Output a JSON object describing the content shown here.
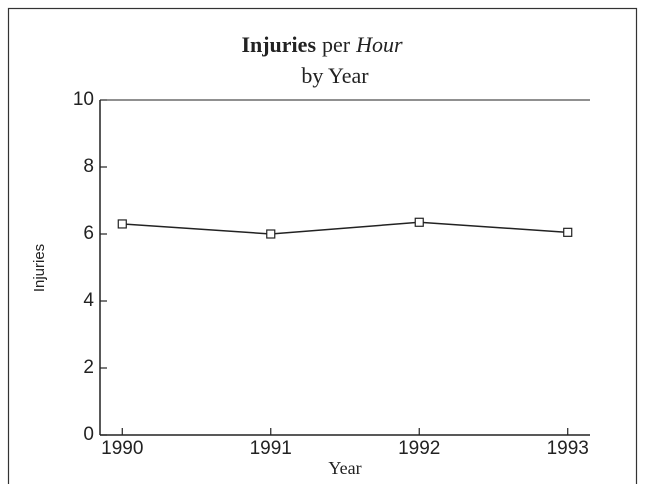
{
  "chart_data": {
    "type": "line",
    "title": [
      "Injuries",
      "per",
      "Hour"
    ],
    "subtitle": "by Year",
    "x_label": "Year",
    "y_label": "Injuries",
    "x": [
      1990,
      1991,
      1992,
      1993
    ],
    "series": [
      {
        "name": "Injuries",
        "color": "#222222",
        "values": [
          6.3,
          6.0,
          6.35,
          6.05
        ]
      }
    ],
    "xlim": [
      1989.85,
      1993.15
    ],
    "xticks": [
      1990,
      1991,
      1992,
      1993
    ],
    "ylim": [
      0,
      10
    ],
    "yticks": [
      0,
      2,
      4,
      6,
      8,
      10
    ]
  }
}
